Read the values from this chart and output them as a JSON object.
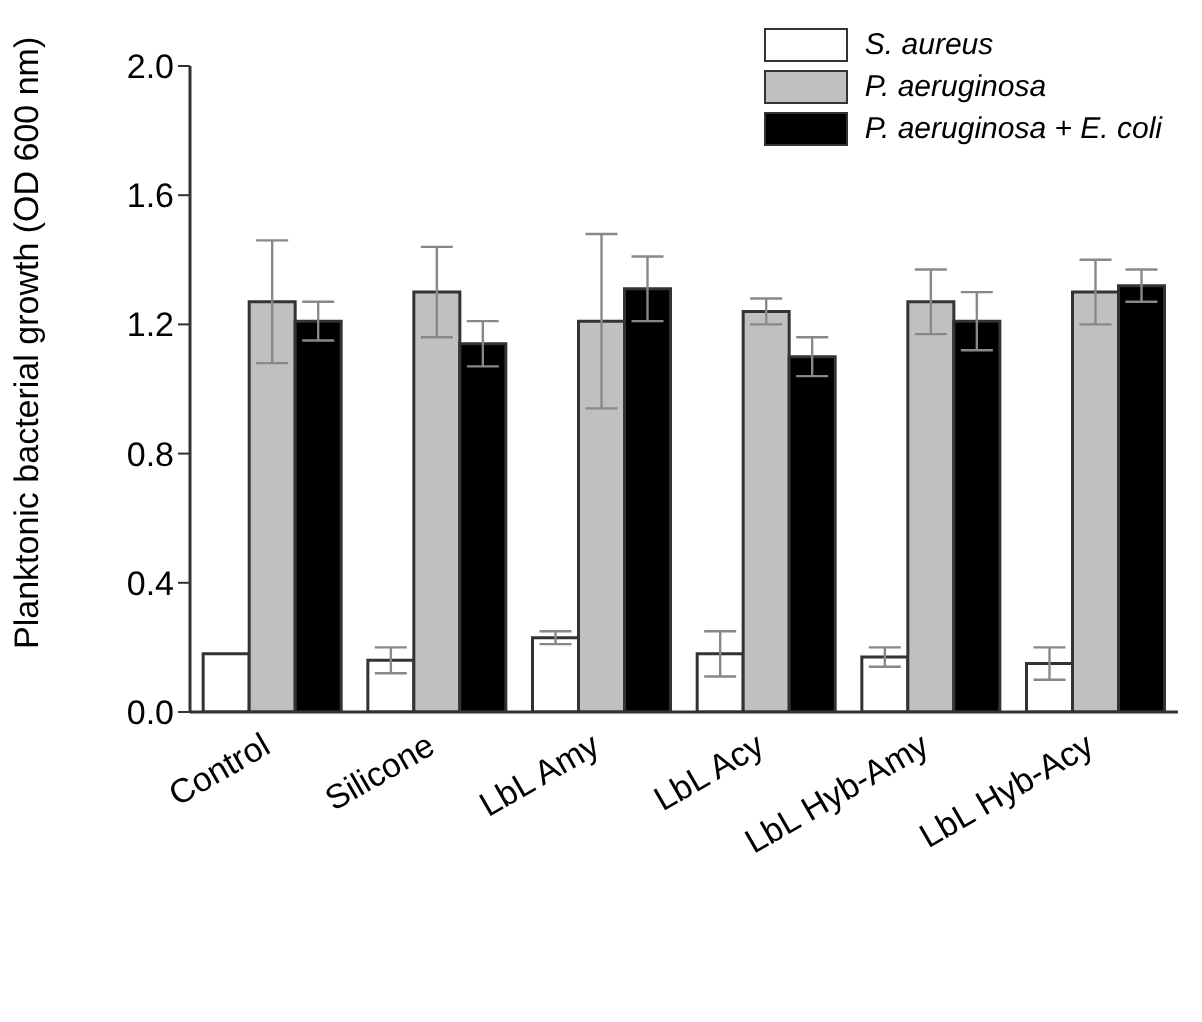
{
  "chart_data": {
    "type": "bar",
    "ylabel": "Planktonic bacterial growth (OD 600 nm)",
    "categories": [
      "Control",
      "Silicone",
      "LbL Amy",
      "LbL Acy",
      "LbL Hyb-Amy",
      "LbL Hyb-Acy"
    ],
    "series": [
      {
        "name": "S. aureus",
        "color": "#ffffff",
        "values": [
          0.18,
          0.16,
          0.23,
          0.18,
          0.17,
          0.15
        ],
        "errors": [
          null,
          0.04,
          0.02,
          0.07,
          0.03,
          0.05
        ]
      },
      {
        "name": "P. aeruginosa",
        "color": "#c0c0c0",
        "values": [
          1.27,
          1.3,
          1.21,
          1.24,
          1.27,
          1.3
        ],
        "errors": [
          0.19,
          0.14,
          0.27,
          0.04,
          0.1,
          0.1
        ]
      },
      {
        "name": "P. aeruginosa + E. coli",
        "color": "#000000",
        "values": [
          1.21,
          1.14,
          1.31,
          1.1,
          1.21,
          1.32
        ],
        "errors": [
          0.06,
          0.07,
          0.1,
          0.06,
          0.09,
          0.05
        ]
      }
    ],
    "ylim": [
      0,
      2.0
    ],
    "yticks": [
      {
        "value": 0,
        "label": "0.0"
      },
      {
        "value": 0.4,
        "label": "0.4"
      },
      {
        "value": 0.8,
        "label": "0.8"
      },
      {
        "value": 1.2,
        "label": "1.2"
      },
      {
        "value": 1.6,
        "label": "1.6"
      },
      {
        "value": 2.0,
        "label": "2.0"
      }
    ],
    "legend": "top right",
    "grid": false
  }
}
